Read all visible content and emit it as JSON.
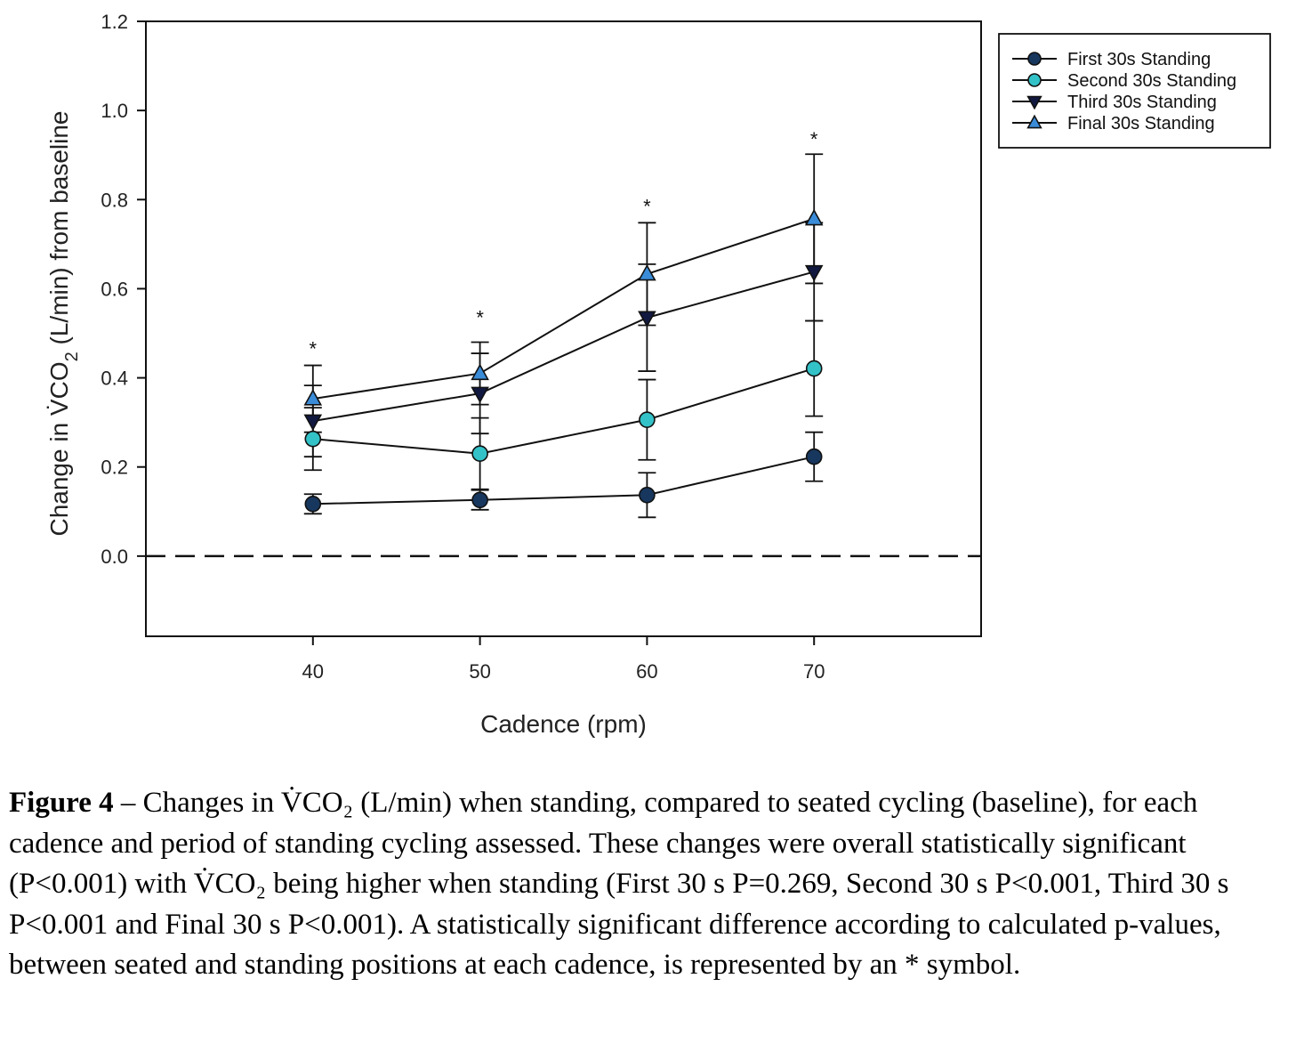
{
  "chart_data": {
    "type": "line",
    "xlabel": "Cadence (rpm)",
    "ylabel": {
      "prefix": "Change in ",
      "symbol": "V̇CO",
      "subscript": "2",
      "suffix": " (L/min) from baseline"
    },
    "x": [
      40,
      50,
      60,
      70
    ],
    "x_ticks": [
      "40",
      "50",
      "60",
      "70"
    ],
    "xlim": [
      30,
      80
    ],
    "y_ticks": [
      "0.0",
      "0.2",
      "0.4",
      "0.6",
      "0.8",
      "1.0",
      "1.2"
    ],
    "ylim": [
      -0.18,
      1.2
    ],
    "reference_line": {
      "y": 0.0,
      "style": "dashed"
    },
    "series": [
      {
        "name": "First 30s Standing",
        "marker": "circle",
        "color": "#17375e",
        "values": [
          0.117,
          0.126,
          0.137,
          0.223
        ],
        "error": [
          0.022,
          0.022,
          0.05,
          0.055
        ]
      },
      {
        "name": "Second 30s Standing",
        "marker": "circle",
        "color": "#33c2c7",
        "values": [
          0.263,
          0.23,
          0.306,
          0.421
        ],
        "error": [
          0.07,
          0.08,
          0.09,
          0.107
        ]
      },
      {
        "name": "Third 30s Standing",
        "marker": "triangle-down",
        "color": "#111940",
        "values": [
          0.303,
          0.365,
          0.535,
          0.638
        ],
        "error": [
          0.08,
          0.09,
          0.12,
          0.11
        ]
      },
      {
        "name": "Final 30s Standing",
        "marker": "triangle-up",
        "color": "#3a8cd8",
        "values": [
          0.353,
          0.41,
          0.633,
          0.757
        ],
        "error": [
          0.075,
          0.07,
          0.115,
          0.145
        ]
      }
    ],
    "significance": [
      {
        "x": 40,
        "label": "*",
        "y": 0.47
      },
      {
        "x": 50,
        "label": "*",
        "y": 0.54
      },
      {
        "x": 60,
        "label": "*",
        "y": 0.79
      },
      {
        "x": 70,
        "label": "*",
        "y": 0.94
      }
    ],
    "legend_position": "outside-top-right",
    "grid": false
  },
  "caption": {
    "lead": "Figure 4",
    "body": " – Changes in V̇CO₂ (L/min) when standing, compared to seated cycling (baseline), for each cadence and period of standing cycling assessed. These changes were overall statistically significant (P<0.001) with V̇CO₂ being higher when standing (First 30 s P=0.269, Second 30 s P<0.001, Third 30 s P<0.001 and Final 30 s P<0.001). A statistically significant difference according to calculated p-values, between seated and standing positions at each cadence, is represented by an * symbol."
  }
}
